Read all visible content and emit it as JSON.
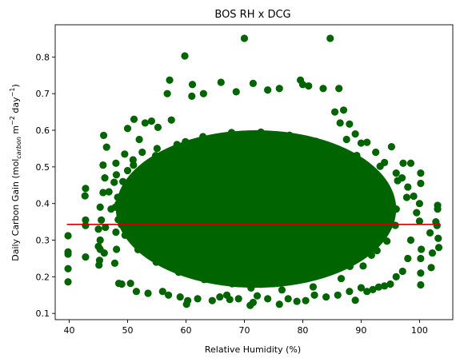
{
  "chart_data": {
    "type": "scatter",
    "title": "BOS RH x DCG",
    "xlabel": "Relative Humidity (%)",
    "ylabel": "Daily Carbon Gain (mol",
    "ylabel_sub": "carbon",
    "ylabel_rest": " m",
    "ylabel_sup1": "−2",
    "ylabel_day": " day",
    "ylabel_sup2": "−1",
    "ylabel_close": ")",
    "xlim": [
      37.6,
      105.7
    ],
    "ylim": [
      0.083,
      0.888
    ],
    "xticks": [
      40,
      50,
      60,
      70,
      80,
      90,
      100
    ],
    "yticks": [
      0.1,
      0.2,
      0.3,
      0.4,
      0.5,
      0.6,
      0.7,
      0.8
    ],
    "point_color": "#006400",
    "trend_color": "#cc0000",
    "trend_line": {
      "x": [
        39.6,
        103.6
      ],
      "y": [
        0.343,
        0.343
      ]
    },
    "points": [
      [
        70.0,
        0.851
      ],
      [
        84.7,
        0.851
      ],
      [
        59.8,
        0.803
      ],
      [
        57.2,
        0.737
      ],
      [
        61.1,
        0.725
      ],
      [
        79.6,
        0.737
      ],
      [
        71.5,
        0.728
      ],
      [
        66.0,
        0.731
      ],
      [
        86.2,
        0.714
      ],
      [
        83.5,
        0.714
      ],
      [
        76.0,
        0.714
      ],
      [
        80.0,
        0.725
      ],
      [
        81.0,
        0.721
      ],
      [
        56.8,
        0.7
      ],
      [
        74.0,
        0.71
      ],
      [
        68.6,
        0.705
      ],
      [
        63.0,
        0.7
      ],
      [
        61.0,
        0.693
      ],
      [
        39.8,
        0.312
      ],
      [
        39.8,
        0.268
      ],
      [
        39.8,
        0.262
      ],
      [
        39.8,
        0.222
      ],
      [
        39.8,
        0.186
      ],
      [
        42.8,
        0.441
      ],
      [
        42.7,
        0.421
      ],
      [
        42.8,
        0.355
      ],
      [
        42.8,
        0.34
      ],
      [
        42.8,
        0.254
      ],
      [
        45.3,
        0.39
      ],
      [
        45.5,
        0.355
      ],
      [
        45.0,
        0.33
      ],
      [
        45.3,
        0.3
      ],
      [
        45.0,
        0.283
      ],
      [
        45.2,
        0.245
      ],
      [
        45.1,
        0.232
      ],
      [
        45.3,
        0.275
      ],
      [
        45.8,
        0.43
      ],
      [
        46.1,
        0.47
      ],
      [
        45.8,
        0.505
      ],
      [
        46.4,
        0.554
      ],
      [
        45.9,
        0.586
      ],
      [
        46.2,
        0.335
      ],
      [
        46.0,
        0.265
      ],
      [
        47.7,
        0.458
      ],
      [
        48.0,
        0.51
      ],
      [
        48.3,
        0.417
      ],
      [
        47.9,
        0.39
      ],
      [
        48.1,
        0.275
      ],
      [
        47.8,
        0.237
      ],
      [
        48.0,
        0.322
      ],
      [
        48.5,
        0.182
      ],
      [
        49.0,
        0.18
      ],
      [
        49.5,
        0.535
      ],
      [
        50.0,
        0.605
      ],
      [
        50.5,
        0.182
      ],
      [
        51.1,
        0.63
      ],
      [
        52.0,
        0.575
      ],
      [
        53.0,
        0.62
      ],
      [
        51.5,
        0.16
      ],
      [
        53.5,
        0.155
      ],
      [
        54.1,
        0.625
      ],
      [
        55.2,
        0.608
      ],
      [
        56.0,
        0.16
      ],
      [
        57.0,
        0.15
      ],
      [
        57.5,
        0.628
      ],
      [
        59.0,
        0.145
      ],
      [
        60.1,
        0.125
      ],
      [
        60.3,
        0.135
      ],
      [
        62.0,
        0.14
      ],
      [
        64.5,
        0.135
      ],
      [
        65.8,
        0.145
      ],
      [
        67.0,
        0.15
      ],
      [
        67.5,
        0.138
      ],
      [
        69.0,
        0.14
      ],
      [
        71.0,
        0.122
      ],
      [
        71.5,
        0.13
      ],
      [
        72.2,
        0.148
      ],
      [
        74.0,
        0.14
      ],
      [
        76.0,
        0.125
      ],
      [
        77.5,
        0.14
      ],
      [
        79.0,
        0.133
      ],
      [
        80.5,
        0.135
      ],
      [
        82.0,
        0.15
      ],
      [
        84.0,
        0.145
      ],
      [
        86.0,
        0.15
      ],
      [
        88.0,
        0.16
      ],
      [
        89.0,
        0.136
      ],
      [
        90.0,
        0.17
      ],
      [
        91.0,
        0.16
      ],
      [
        92.0,
        0.165
      ],
      [
        93.0,
        0.172
      ],
      [
        94.0,
        0.175
      ],
      [
        95.0,
        0.18
      ],
      [
        96.0,
        0.2
      ],
      [
        97.1,
        0.215
      ],
      [
        88.0,
        0.617
      ],
      [
        89.0,
        0.59
      ],
      [
        90.0,
        0.565
      ],
      [
        91.0,
        0.567
      ],
      [
        92.5,
        0.54
      ],
      [
        94.0,
        0.512
      ],
      [
        95.2,
        0.555
      ],
      [
        96.0,
        0.483
      ],
      [
        97.2,
        0.51
      ],
      [
        97.0,
        0.47
      ],
      [
        98.5,
        0.51
      ],
      [
        98.0,
        0.445
      ],
      [
        99.0,
        0.42
      ],
      [
        100.0,
        0.4
      ],
      [
        100.2,
        0.483
      ],
      [
        100.2,
        0.455
      ],
      [
        100.0,
        0.352
      ],
      [
        100.3,
        0.275
      ],
      [
        100.2,
        0.25
      ],
      [
        100.2,
        0.21
      ],
      [
        100.2,
        0.178
      ],
      [
        102.2,
        0.265
      ],
      [
        102.0,
        0.225
      ],
      [
        103.1,
        0.395
      ],
      [
        103.1,
        0.385
      ],
      [
        103.0,
        0.34
      ],
      [
        103.2,
        0.305
      ],
      [
        103.3,
        0.28
      ],
      [
        102.8,
        0.35
      ],
      [
        101.8,
        0.32
      ],
      [
        98.5,
        0.3
      ],
      [
        98.0,
        0.25
      ],
      [
        99.5,
        0.375
      ],
      [
        87.0,
        0.655
      ],
      [
        85.5,
        0.65
      ],
      [
        86.4,
        0.62
      ],
      [
        87.5,
        0.575
      ],
      [
        52.5,
        0.54
      ],
      [
        51.0,
        0.505
      ],
      [
        50.0,
        0.49
      ],
      [
        49.2,
        0.46
      ],
      [
        49.8,
        0.42
      ],
      [
        49.5,
        0.38
      ]
    ]
  }
}
